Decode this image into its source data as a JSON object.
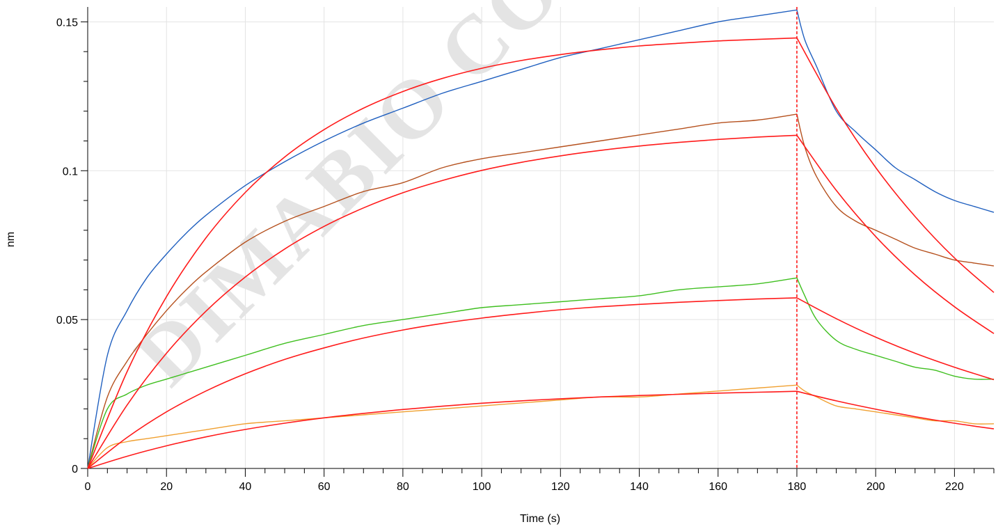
{
  "chart_data": {
    "type": "line",
    "title": "",
    "xlabel": "Time (s)",
    "ylabel": "nm",
    "xlim": [
      0,
      230
    ],
    "ylim": [
      0,
      0.155
    ],
    "xticks": [
      0,
      20,
      40,
      60,
      80,
      100,
      120,
      140,
      160,
      180,
      200,
      220
    ],
    "xtick_labels": [
      "0",
      "20",
      "40",
      "60",
      "80",
      "100",
      "120",
      "140",
      "160",
      "180",
      "200",
      "220"
    ],
    "yticks": [
      0,
      0.05,
      0.1,
      0.15
    ],
    "ytick_labels": [
      "0",
      "0.05",
      "0.1",
      "0.15"
    ],
    "grid": true,
    "dissociation_marker_x": 180,
    "watermark_text": "DIMABIO CO",
    "colors": {
      "blue": "#1f5fbf",
      "brown": "#b5501d",
      "green": "#3fbf1f",
      "orange": "#f0a030",
      "fit": "#ff1a1a",
      "grid": "#e3e3e3"
    },
    "series": [
      {
        "color_key": "blue",
        "x": [
          0,
          5,
          10,
          15,
          20,
          25,
          30,
          40,
          50,
          60,
          70,
          80,
          90,
          100,
          110,
          120,
          130,
          140,
          150,
          160,
          170,
          180,
          182,
          185,
          190,
          195,
          200,
          205,
          210,
          215,
          220,
          225,
          230
        ],
        "y": [
          0,
          0.038,
          0.053,
          0.064,
          0.072,
          0.079,
          0.085,
          0.095,
          0.103,
          0.11,
          0.116,
          0.121,
          0.126,
          0.13,
          0.134,
          0.138,
          0.141,
          0.144,
          0.147,
          0.15,
          0.152,
          0.154,
          0.144,
          0.135,
          0.12,
          0.113,
          0.107,
          0.101,
          0.097,
          0.093,
          0.09,
          0.088,
          0.086
        ]
      },
      {
        "color_key": "brown",
        "x": [
          0,
          5,
          10,
          15,
          20,
          25,
          30,
          40,
          50,
          60,
          70,
          80,
          90,
          100,
          110,
          120,
          130,
          140,
          150,
          160,
          170,
          180,
          182,
          185,
          190,
          195,
          200,
          205,
          210,
          215,
          220,
          225,
          230
        ],
        "y": [
          0,
          0.024,
          0.036,
          0.045,
          0.053,
          0.06,
          0.066,
          0.076,
          0.083,
          0.088,
          0.093,
          0.096,
          0.101,
          0.104,
          0.106,
          0.108,
          0.11,
          0.112,
          0.114,
          0.116,
          0.117,
          0.119,
          0.108,
          0.098,
          0.088,
          0.083,
          0.08,
          0.077,
          0.074,
          0.072,
          0.07,
          0.069,
          0.068
        ]
      },
      {
        "color_key": "green",
        "x": [
          0,
          5,
          10,
          15,
          20,
          25,
          30,
          40,
          50,
          60,
          70,
          80,
          90,
          100,
          110,
          120,
          130,
          140,
          150,
          160,
          170,
          180,
          182,
          185,
          190,
          195,
          200,
          205,
          210,
          215,
          220,
          225,
          230
        ],
        "y": [
          0,
          0.02,
          0.025,
          0.028,
          0.03,
          0.032,
          0.034,
          0.038,
          0.042,
          0.045,
          0.048,
          0.05,
          0.052,
          0.054,
          0.055,
          0.056,
          0.057,
          0.058,
          0.06,
          0.061,
          0.062,
          0.064,
          0.058,
          0.05,
          0.043,
          0.04,
          0.038,
          0.036,
          0.034,
          0.033,
          0.031,
          0.03,
          0.03
        ]
      },
      {
        "color_key": "orange",
        "x": [
          0,
          5,
          10,
          15,
          20,
          25,
          30,
          40,
          50,
          60,
          70,
          80,
          90,
          100,
          110,
          120,
          130,
          140,
          150,
          160,
          170,
          180,
          182,
          185,
          190,
          195,
          200,
          205,
          210,
          215,
          220,
          225,
          230
        ],
        "y": [
          0,
          0.007,
          0.009,
          0.01,
          0.011,
          0.012,
          0.013,
          0.015,
          0.016,
          0.017,
          0.018,
          0.019,
          0.02,
          0.021,
          0.022,
          0.023,
          0.024,
          0.024,
          0.025,
          0.026,
          0.027,
          0.028,
          0.026,
          0.024,
          0.021,
          0.02,
          0.019,
          0.018,
          0.017,
          0.016,
          0.016,
          0.015,
          0.015
        ]
      }
    ],
    "fits": [
      {
        "x": [
          0,
          10,
          20,
          30,
          40,
          50,
          60,
          70,
          80,
          90,
          100,
          110,
          120,
          130,
          140,
          150,
          160,
          170,
          180,
          190,
          200,
          210,
          220,
          230
        ],
        "y": [
          0,
          0.0325,
          0.0577,
          0.0774,
          0.0927,
          0.1046,
          0.1138,
          0.121,
          0.1266,
          0.131,
          0.1344,
          0.137,
          0.139,
          0.1406,
          0.1419,
          0.1428,
          0.1436,
          0.1441,
          0.1446,
          0.1209,
          0.1011,
          0.0846,
          0.0707,
          0.0591
        ]
      },
      {
        "x": [
          0,
          10,
          20,
          30,
          40,
          50,
          60,
          70,
          80,
          90,
          100,
          110,
          120,
          130,
          140,
          150,
          160,
          170,
          180,
          190,
          200,
          210,
          220,
          230
        ],
        "y": [
          0,
          0.0213,
          0.0387,
          0.0528,
          0.0643,
          0.0737,
          0.0813,
          0.0875,
          0.0926,
          0.0967,
          0.1001,
          0.1028,
          0.105,
          0.1068,
          0.1083,
          0.1095,
          0.1105,
          0.1113,
          0.1119,
          0.0934,
          0.0779,
          0.065,
          0.0543,
          0.0453
        ]
      },
      {
        "x": [
          0,
          10,
          20,
          30,
          40,
          50,
          60,
          70,
          80,
          90,
          100,
          110,
          120,
          130,
          140,
          150,
          160,
          170,
          180,
          190,
          200,
          210,
          220,
          230
        ],
        "y": [
          0,
          0.0104,
          0.019,
          0.026,
          0.0318,
          0.0366,
          0.0405,
          0.0438,
          0.0465,
          0.0487,
          0.0505,
          0.052,
          0.0533,
          0.0543,
          0.0551,
          0.0558,
          0.0564,
          0.0569,
          0.0573,
          0.0503,
          0.0441,
          0.0387,
          0.034,
          0.0298
        ]
      },
      {
        "x": [
          0,
          10,
          20,
          30,
          40,
          50,
          60,
          70,
          80,
          90,
          100,
          110,
          120,
          130,
          140,
          150,
          160,
          170,
          180,
          190,
          200,
          210,
          220,
          230
        ],
        "y": [
          0,
          0.0041,
          0.0076,
          0.0106,
          0.0131,
          0.0152,
          0.017,
          0.0185,
          0.0198,
          0.0209,
          0.0219,
          0.0227,
          0.0234,
          0.024,
          0.0245,
          0.0249,
          0.0253,
          0.0256,
          0.0259,
          0.0227,
          0.0199,
          0.0174,
          0.0152,
          0.0133
        ]
      }
    ]
  }
}
